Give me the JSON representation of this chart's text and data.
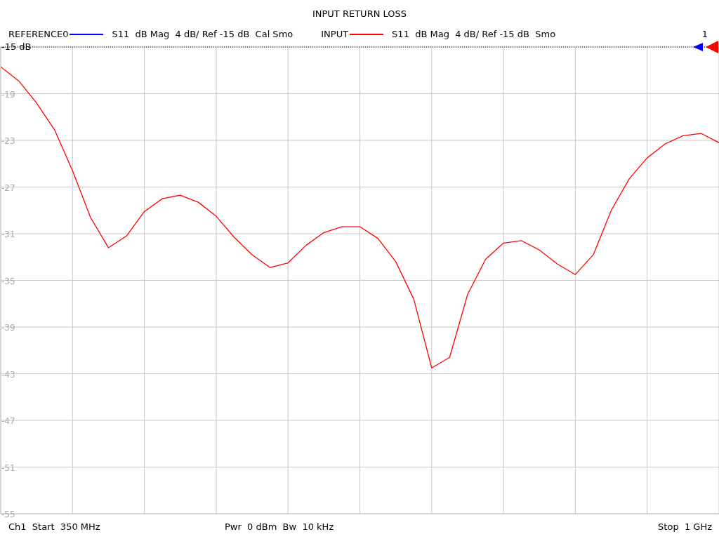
{
  "chart_data": {
    "type": "line",
    "title": "INPUT RETURN LOSS",
    "categories": [
      null,
      null,
      null,
      null,
      null,
      null,
      null,
      null,
      null,
      null,
      null,
      null,
      null,
      null,
      null,
      null,
      null,
      null,
      null,
      null,
      null,
      null,
      null,
      null,
      null,
      null,
      null,
      null,
      null,
      null,
      null,
      null,
      null,
      null,
      null,
      null,
      null,
      null,
      null,
      null,
      null
    ],
    "series": [
      {
        "name": "REFERENCE0",
        "color": "#0000ff",
        "values": [
          null,
          null,
          null,
          null,
          null,
          null,
          null,
          null,
          null,
          null,
          null,
          null,
          null,
          null,
          null,
          null,
          null,
          null,
          null,
          null,
          null,
          null,
          null,
          null,
          null,
          null,
          null,
          null,
          null,
          null,
          null,
          null,
          null,
          null,
          null,
          null,
          null,
          null,
          null,
          null,
          null
        ]
      },
      {
        "name": "INPUT",
        "color": "#ff0000",
        "values": [
          -16.7,
          -17.9,
          -19.8,
          -22.1,
          -25.6,
          -29.6,
          -32.2,
          -31.2,
          -29.1,
          -28.0,
          -27.7,
          -28.3,
          -29.5,
          -31.3,
          -32.8,
          -33.9,
          -33.5,
          -32.0,
          -30.9,
          -30.4,
          -30.4,
          -31.4,
          -33.4,
          -36.6,
          -42.5,
          -41.6,
          -36.2,
          -33.2,
          -31.8,
          -31.6,
          -32.4,
          -33.6,
          -34.5,
          -32.8,
          -29.0,
          -26.3,
          -24.5,
          -23.3,
          -22.6,
          -22.4,
          -23.2
        ]
      }
    ],
    "ylim": [
      -55,
      -15
    ],
    "yticks": [
      -19,
      -23,
      -27,
      -31,
      -35,
      -39,
      -43,
      -47,
      -51,
      -55
    ],
    "grid": true,
    "legend": "top",
    "marker": "none",
    "line_style": "solid",
    "ref_lines": [
      {
        "axis": "y",
        "value": -15,
        "label": "-15 dB",
        "color": "#000000",
        "line_style": "dotted"
      }
    ],
    "annotations": [
      "S11  dB Mag  4 dB/ Ref -15 dB  Cal Smo",
      "S11  dB Mag  4 dB/ Ref -15 dB  Smo",
      "1",
      "Ch1  Start  350 MHz",
      "Pwr  0 dBm  Bw  10 kHz",
      "Stop  1 GHz"
    ]
  }
}
